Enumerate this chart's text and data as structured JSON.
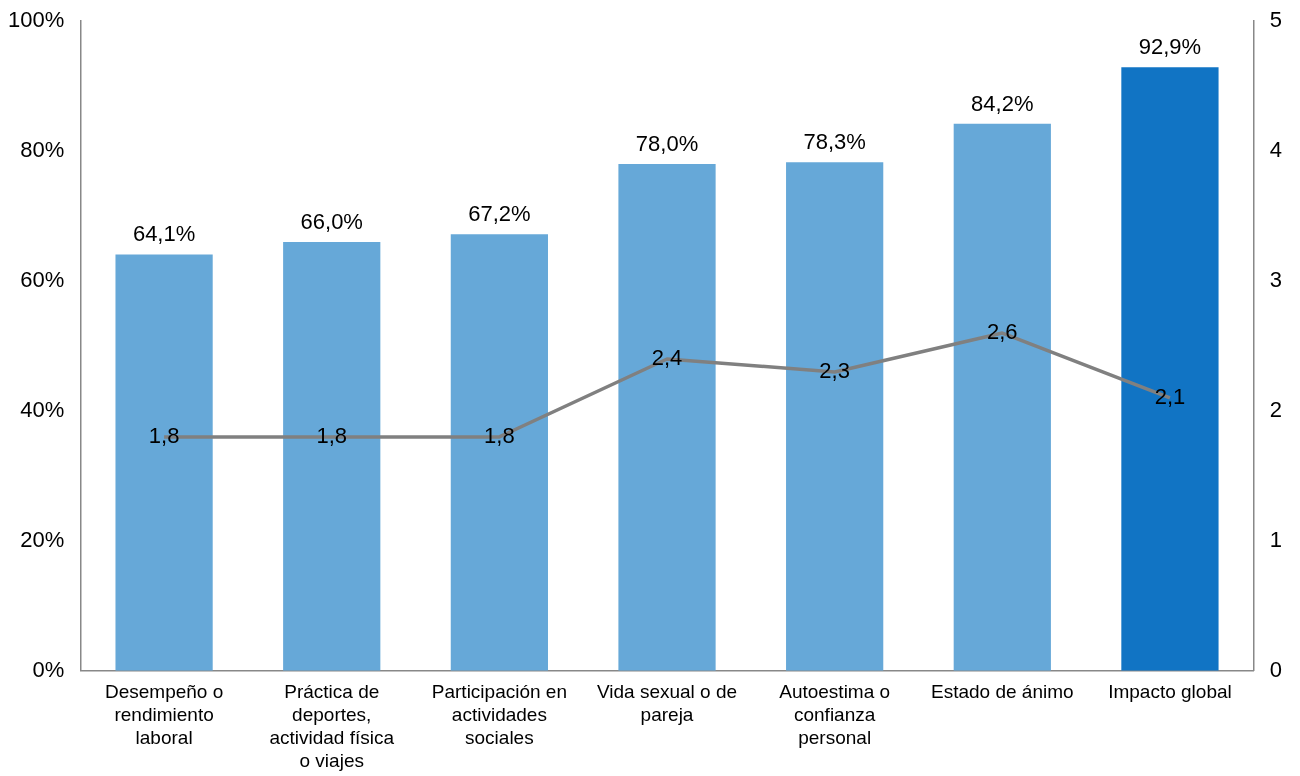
{
  "chart_data": {
    "type": "bar",
    "categories": [
      "Desempeño o rendimiento laboral",
      "Práctica de deportes, actividad física o viajes",
      "Participación en actividades sociales",
      "Vida sexual o de pareja",
      "Autoestima o confianza personal",
      "Estado de ánimo",
      "Impacto global"
    ],
    "series": [
      {
        "colors": [
          "#66a8d8",
          "#66a8d8",
          "#66a8d8",
          "#66a8d8",
          "#66a8d8",
          "#66a8d8",
          "#1174c4"
        ],
        "values": [
          64.1,
          66.0,
          67.2,
          78.0,
          78.3,
          84.2,
          92.9
        ],
        "value_labels": [
          "64,1%",
          "66,0%",
          "67,2%",
          "78,0%",
          "78,3%",
          "84,2%",
          "92,9%"
        ]
      },
      {
        "type": "line",
        "axis": "y2",
        "color": "#808080",
        "values": [
          1.8,
          1.8,
          1.8,
          2.4,
          2.3,
          2.6,
          2.1
        ],
        "value_labels": [
          "1,8",
          "1,8",
          "1,8",
          "2,4",
          "2,3",
          "2,6",
          "2,1"
        ]
      }
    ],
    "ylim": [
      0,
      100
    ],
    "yticks": [
      {
        "value": 0,
        "label": "0%"
      },
      {
        "value": 20,
        "label": "20%"
      },
      {
        "value": 40,
        "label": "40%"
      },
      {
        "value": 60,
        "label": "60%"
      },
      {
        "value": 80,
        "label": "80%"
      },
      {
        "value": 100,
        "label": "100%"
      }
    ],
    "y2lim": [
      0,
      5
    ],
    "y2ticks": [
      0,
      1,
      2,
      3,
      4,
      5
    ],
    "grid": false,
    "legend": false,
    "marker": "none",
    "line_style": "solid"
  }
}
